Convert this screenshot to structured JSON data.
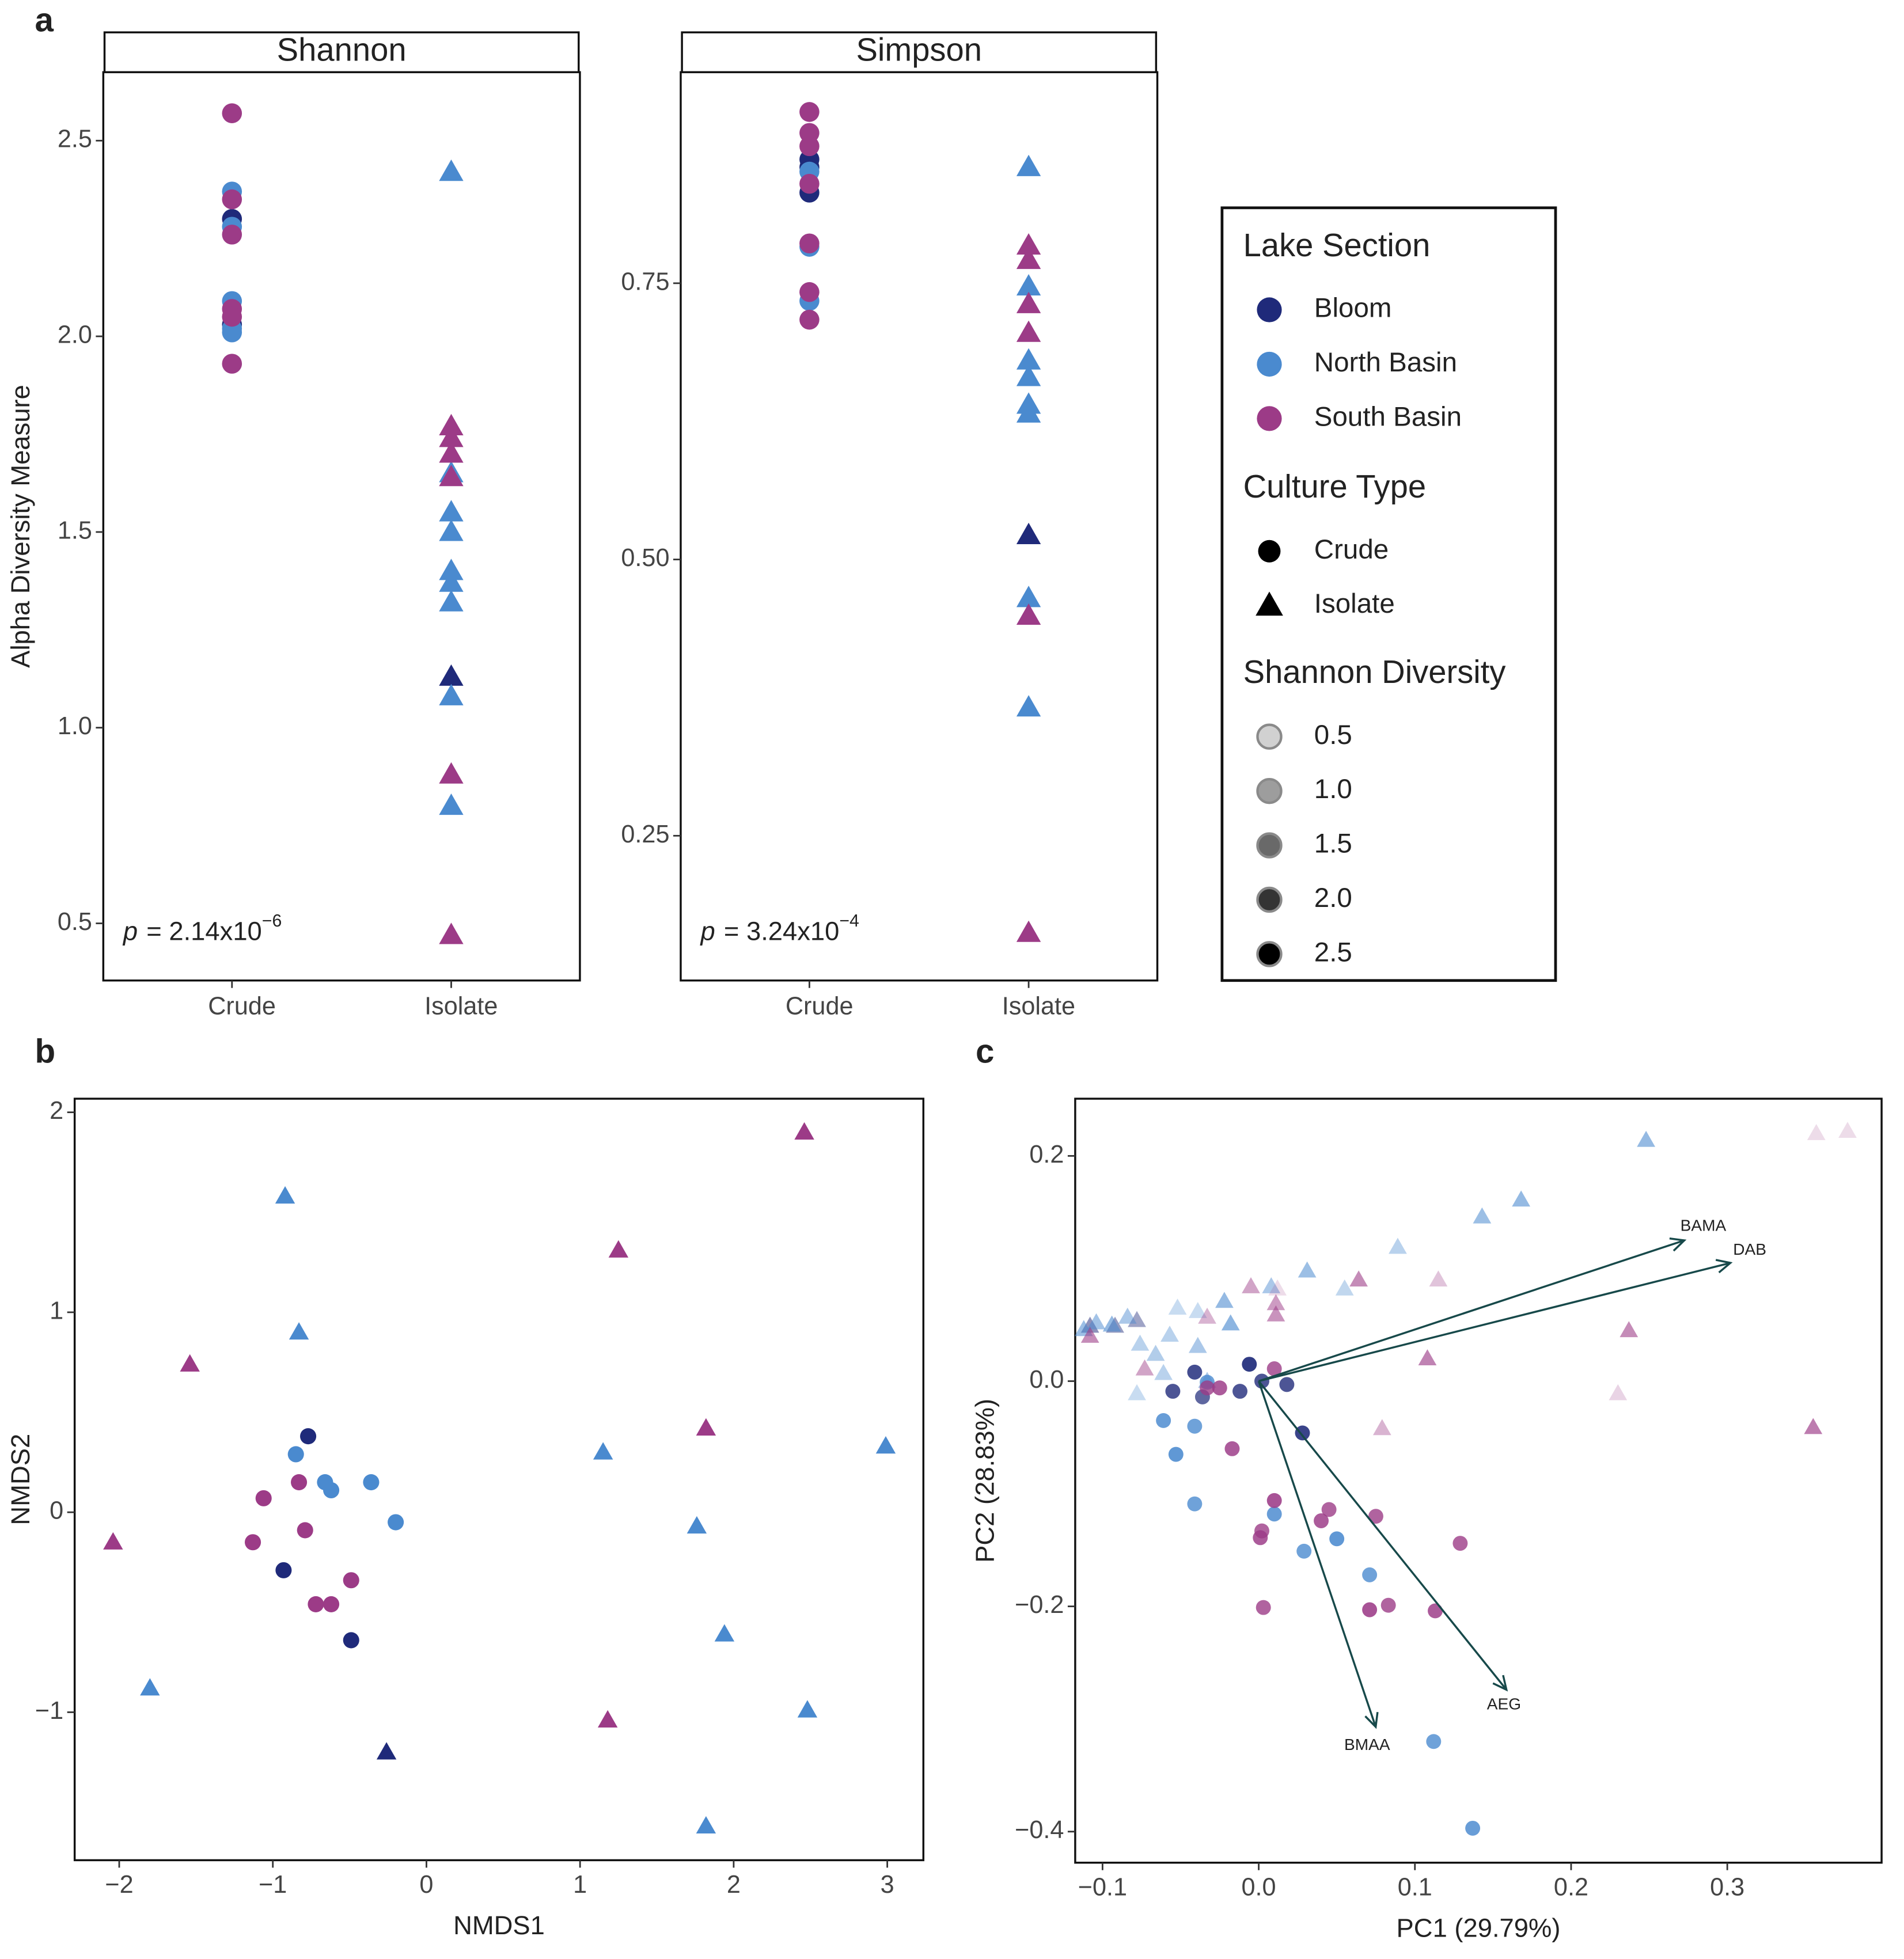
{
  "legend": {
    "sections": [
      {
        "title": "Lake Section",
        "items": [
          {
            "name": "Bloom",
            "color": "#1f2a7a"
          },
          {
            "name": "North Basin",
            "color": "#4a8acf"
          },
          {
            "name": "South Basin",
            "color": "#9c3b87"
          }
        ]
      },
      {
        "title": "Culture Type",
        "items": [
          {
            "name": "Crude",
            "marker": "circle"
          },
          {
            "name": "Isolate",
            "marker": "triangle"
          }
        ]
      },
      {
        "title": "Shannon Diversity",
        "items": [
          {
            "value": 0.5,
            "label": "0.5"
          },
          {
            "value": 1,
            "label": "1.0"
          },
          {
            "value": 1.5,
            "label": "1.5"
          },
          {
            "value": 2,
            "label": "2.0"
          },
          {
            "value": 2.5,
            "label": "2.5"
          }
        ]
      }
    ]
  },
  "chart_data": [
    {
      "type": "strip",
      "panel": "a",
      "title": "Shannon",
      "y_label": "Alpha Diversity Measure",
      "categories": [
        "Crude",
        "Isolate"
      ],
      "ylim": [
        0.354,
        2.675
      ],
      "yticks": [
        0.5,
        {
          "value": 1,
          "label": "1.0"
        },
        1.5,
        {
          "value": 2,
          "label": "2.0"
        },
        2.5
      ],
      "annotation": {
        "italic": "p",
        "text": "= 2.14x10",
        "exponent": "−6"
      },
      "series": [
        {
          "name": "Bloom",
          "color": "#1f2a7a",
          "x": [
            "Crude",
            "Crude",
            "Isolate"
          ],
          "values": [
            2.3,
            2.03,
            1.13
          ]
        },
        {
          "name": "North Basin",
          "color": "#4a8acf",
          "x": [
            "Crude",
            "Crude",
            "Crude",
            "Crude",
            "Crude",
            "Isolate",
            "Isolate",
            "Isolate",
            "Isolate",
            "Isolate",
            "Isolate",
            "Isolate",
            "Isolate",
            "Isolate"
          ],
          "values": [
            2.37,
            2.28,
            2.09,
            2.02,
            2.01,
            2.42,
            1.65,
            1.55,
            1.5,
            1.4,
            1.37,
            1.32,
            1.08,
            0.8
          ]
        },
        {
          "name": "South Basin",
          "color": "#9c3b87",
          "x": [
            "Crude",
            "Crude",
            "Crude",
            "Crude",
            "Crude",
            "Crude",
            "Isolate",
            "Isolate",
            "Isolate",
            "Isolate",
            "Isolate",
            "Isolate"
          ],
          "values": [
            2.57,
            2.35,
            2.26,
            2.07,
            2.05,
            1.93,
            1.77,
            1.74,
            1.7,
            1.64,
            0.88,
            0.47
          ]
        }
      ]
    },
    {
      "type": "strip",
      "title": "Simpson",
      "categories": [
        "Crude",
        "Isolate"
      ],
      "ylim": [
        0.119,
        0.941
      ],
      "yticks": [
        0.25,
        {
          "value": 0.5,
          "label": "0.50"
        },
        0.75
      ],
      "annotation": {
        "italic": "p",
        "text": "= 3.24x10",
        "exponent": "−4"
      },
      "series": [
        {
          "name": "Bloom",
          "color": "#1f2a7a",
          "x": [
            "Crude",
            "Crude",
            "Crude",
            "Isolate"
          ],
          "values": [
            0.862,
            0.855,
            0.832,
            0.522
          ]
        },
        {
          "name": "North Basin",
          "color": "#4a8acf",
          "x": [
            "Crude",
            "Crude",
            "Crude",
            "Isolate",
            "Isolate",
            "Isolate",
            "Isolate",
            "Isolate",
            "Isolate",
            "Isolate",
            "Isolate"
          ],
          "values": [
            0.851,
            0.783,
            0.734,
            0.855,
            0.747,
            0.68,
            0.665,
            0.64,
            0.632,
            0.465,
            0.366
          ]
        },
        {
          "name": "South Basin",
          "color": "#9c3b87",
          "x": [
            "Crude",
            "Crude",
            "Crude",
            "Crude",
            "Crude",
            "Crude",
            "Crude",
            "Isolate",
            "Isolate",
            "Isolate",
            "Isolate",
            "Isolate",
            "Isolate"
          ],
          "values": [
            0.905,
            0.886,
            0.874,
            0.84,
            0.786,
            0.742,
            0.717,
            0.784,
            0.771,
            0.731,
            0.705,
            0.449,
            0.162
          ]
        }
      ]
    },
    {
      "type": "scatter",
      "panel": "b",
      "x_label": "NMDS1",
      "y_label": "NMDS2",
      "xlim": [
        -2.29,
        3.235
      ],
      "ylim": [
        -1.74,
        2.068
      ],
      "xticks": [
        {
          "value": -2,
          "label": "−2"
        },
        {
          "value": -1,
          "label": "−1"
        },
        0,
        1,
        2,
        3
      ],
      "yticks": [
        {
          "value": -1,
          "label": "−1"
        },
        0,
        1,
        2
      ],
      "series": [
        {
          "name": "Bloom",
          "color": "#1f2a7a",
          "x": [
            -0.77,
            -0.93,
            -0.49,
            -0.26
          ],
          "values": [
            0.38,
            -0.29,
            -0.64,
            -1.2
          ],
          "culture": [
            "Crude",
            "Crude",
            "Crude",
            "Isolate"
          ]
        },
        {
          "name": "North Basin",
          "color": "#4a8acf",
          "x": [
            -0.85,
            -0.66,
            -0.62,
            -0.36,
            -0.2,
            -0.92,
            -0.83,
            1.15,
            2.99,
            1.76,
            1.94,
            -1.8,
            2.48,
            1.82
          ],
          "values": [
            0.29,
            0.15,
            0.11,
            0.15,
            -0.05,
            1.58,
            0.9,
            0.3,
            0.33,
            -0.07,
            -0.61,
            -0.88,
            -0.99,
            -1.57
          ],
          "culture": [
            "Crude",
            "Crude",
            "Crude",
            "Crude",
            "Crude",
            "Isolate",
            "Isolate",
            "Isolate",
            "Isolate",
            "Isolate",
            "Isolate",
            "Isolate",
            "Isolate",
            "Isolate"
          ]
        },
        {
          "name": "South Basin",
          "color": "#9c3b87",
          "x": [
            -1.06,
            -0.83,
            -0.79,
            -1.13,
            -0.72,
            -0.62,
            -0.49,
            2.46,
            1.25,
            -1.54,
            1.82,
            -2.04,
            1.18
          ],
          "values": [
            0.07,
            0.15,
            -0.09,
            -0.15,
            -0.46,
            -0.46,
            -0.34,
            1.9,
            1.31,
            0.74,
            0.42,
            -0.15,
            -1.04
          ],
          "culture": [
            "Crude",
            "Crude",
            "Crude",
            "Crude",
            "Crude",
            "Crude",
            "Crude",
            "Isolate",
            "Isolate",
            "Isolate",
            "Isolate",
            "Isolate",
            "Isolate"
          ]
        }
      ]
    },
    {
      "type": "biplot",
      "panel": "c",
      "x_label": "PC1 (29.79%)",
      "y_label": "PC2 (28.83%)",
      "xlim": [
        -0.1175,
        0.3988
      ],
      "ylim": [
        -0.4276,
        0.2508
      ],
      "xticks": [
        {
          "value": -0.1,
          "label": "−0.1"
        },
        {
          "value": 0,
          "label": "0.0"
        },
        0.1,
        0.2,
        0.3
      ],
      "yticks": [
        {
          "value": -0.4,
          "label": "−0.4"
        },
        {
          "value": -0.2,
          "label": "−0.2"
        },
        {
          "value": 0,
          "label": "0.0"
        },
        0.2
      ],
      "arrows": [
        {
          "label": "BAMA",
          "x": 0.2725,
          "y": 0.125
        },
        {
          "label": "DAB",
          "x": 0.302,
          "y": 0.105
        },
        {
          "label": "AEG",
          "x": 0.1586,
          "y": -0.274
        },
        {
          "label": "BMAA",
          "x": 0.0749,
          "y": -0.307
        }
      ],
      "arrow_color": "#17494a",
      "series": [
        {
          "name": "Bloom",
          "color": "#1f2a7a",
          "x": [
            -0.006,
            0.018,
            0.028,
            -0.012,
            -0.055,
            -0.041,
            -0.036,
            0.002,
            -0.078,
            -0.092,
            -0.108
          ],
          "values": [
            0.015,
            -0.003,
            -0.046,
            -0.009,
            -0.009,
            0.008,
            -0.014,
            0,
            0.054,
            0.049,
            0.049
          ],
          "culture": [
            "Crude",
            "Crude",
            "Crude",
            "Crude",
            "Crude",
            "Crude",
            "Crude",
            "Crude",
            "Isolate",
            "Isolate",
            "Isolate"
          ],
          "shannon": [
            2.3,
            2.0,
            2.2,
            2.0,
            2.0,
            2.1,
            1.8,
            2.0,
            1.1,
            1.2,
            1.3
          ]
        },
        {
          "name": "North Basin",
          "color": "#4a8acf",
          "x": [
            0.112,
            0.137,
            0.071,
            0.05,
            0.029,
            0.01,
            -0.041,
            -0.053,
            -0.041,
            -0.061,
            -0.033,
            0.248,
            0.143,
            0.168,
            0.089,
            0.031,
            0.055,
            0.008,
            -0.022,
            -0.018,
            -0.052,
            -0.039,
            -0.057,
            -0.039,
            -0.112,
            -0.104,
            -0.094,
            -0.084,
            -0.076,
            -0.066,
            -0.078,
            -0.061,
            -0.033
          ],
          "values": [
            -0.32,
            -0.397,
            -0.172,
            -0.14,
            -0.151,
            -0.118,
            -0.109,
            -0.065,
            -0.04,
            -0.035,
            -0.001,
            0.214,
            0.146,
            0.161,
            0.119,
            0.098,
            0.082,
            0.084,
            0.071,
            0.051,
            0.065,
            0.062,
            0.041,
            0.031,
            0.046,
            0.052,
            0.05,
            0.057,
            0.033,
            0.024,
            -0.011,
            0.007,
            0
          ],
          "culture": [
            "Crude",
            "Crude",
            "Crude",
            "Crude",
            "Crude",
            "Crude",
            "Crude",
            "Crude",
            "Crude",
            "Crude",
            "Crude",
            "Isolate",
            "Isolate",
            "Isolate",
            "Isolate",
            "Isolate",
            "Isolate",
            "Isolate",
            "Isolate",
            "Isolate",
            "Isolate",
            "Isolate",
            "Isolate",
            "Isolate",
            "Isolate",
            "Isolate",
            "Isolate",
            "Isolate",
            "Isolate",
            "Isolate",
            "Isolate",
            "Isolate",
            "Isolate"
          ],
          "shannon": [
            2.0,
            2.1,
            2.0,
            2.2,
            2.0,
            2.1,
            2.0,
            2.2,
            2.0,
            2.1,
            2.0,
            1.5,
            1.4,
            1.5,
            1.0,
            1.4,
            0.9,
            1.2,
            1.5,
            1.6,
            0.8,
            0.8,
            1.0,
            1.2,
            1.4,
            1.3,
            1.5,
            1.2,
            1.0,
            1.1,
            0.8,
            1.0,
            1.2
          ]
        },
        {
          "name": "South Basin",
          "color": "#9c3b87",
          "x": [
            0.129,
            0.113,
            0.083,
            0.071,
            0.075,
            0.045,
            0.04,
            0.01,
            0.002,
            0.001,
            0.003,
            -0.017,
            -0.033,
            -0.025,
            0.01,
            0.357,
            0.377,
            0.115,
            0.064,
            0.011,
            0.011,
            0.012,
            -0.005,
            -0.033,
            0.237,
            0.108,
            0.079,
            0.355,
            0.23,
            -0.108,
            -0.073
          ],
          "values": [
            -0.144,
            -0.204,
            -0.199,
            -0.203,
            -0.12,
            -0.114,
            -0.124,
            -0.106,
            -0.133,
            -0.139,
            -0.201,
            -0.06,
            -0.006,
            -0.006,
            0.011,
            0.22,
            0.222,
            0.09,
            0.09,
            0.069,
            0.059,
            0.082,
            0.084,
            0.057,
            0.045,
            0.02,
            -0.042,
            -0.041,
            -0.011,
            0.04,
            0.011
          ],
          "culture": [
            "Crude",
            "Crude",
            "Crude",
            "Crude",
            "Crude",
            "Crude",
            "Crude",
            "Crude",
            "Crude",
            "Crude",
            "Crude",
            "Crude",
            "Crude",
            "Crude",
            "Crude",
            "Isolate",
            "Isolate",
            "Isolate",
            "Isolate",
            "Isolate",
            "Isolate",
            "Isolate",
            "Isolate",
            "Isolate",
            "Isolate",
            "Isolate",
            "Isolate",
            "Isolate",
            "Isolate",
            "Isolate",
            "Isolate"
          ],
          "shannon": [
            2.0,
            2.1,
            2.0,
            2.2,
            2.0,
            2.0,
            2.1,
            2.2,
            2.0,
            2.1,
            2.0,
            2.1,
            2.0,
            2.1,
            2.0,
            0.5,
            0.5,
            0.8,
            1.5,
            1.3,
            1.4,
            0.5,
            1.2,
            1.0,
            1.5,
            1.6,
            1.0,
            1.7,
            0.6,
            1.5,
            1.2
          ]
        }
      ]
    }
  ]
}
